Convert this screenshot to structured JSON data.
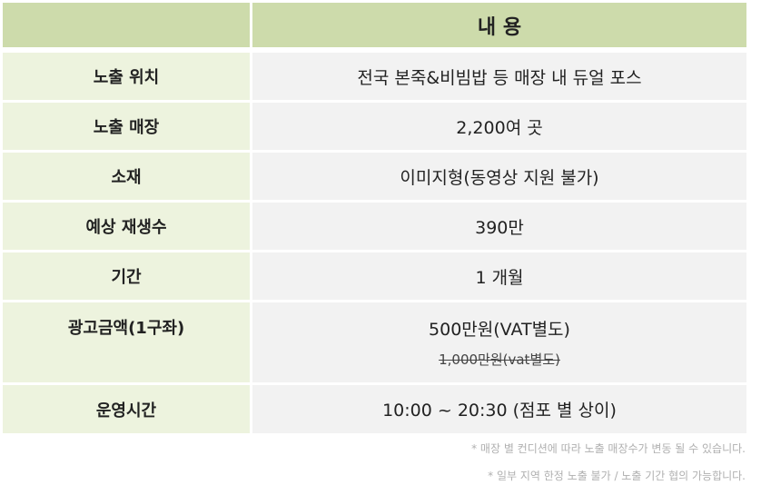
{
  "header": {
    "left": "",
    "right": "내 용"
  },
  "rows": [
    {
      "label": "노출 위치",
      "value": "전국 본죽&비빔밥 등 매장 내 듀얼 포스"
    },
    {
      "label": "노출 매장",
      "value": "2,200여 곳"
    },
    {
      "label": "소재",
      "value": "이미지형(동영상 지원 불가)"
    },
    {
      "label": "예상 재생수",
      "value": "390만"
    },
    {
      "label": "기간",
      "value": "1 개월"
    },
    {
      "label": "광고금액(1구좌)",
      "value": "500만원(VAT별도)",
      "old_value": "1,000만원(vat별도)"
    },
    {
      "label": "운영시간",
      "value": "10:00 ~ 20:30 (점포 별 상이)"
    }
  ],
  "notes": [
    "* 매장 별 컨디션에 따라 노출 매장수가 변동 될 수 있습니다.",
    "* 일부 지역 한정 노출 불가 / 노출 기간 협의 가능합니다."
  ]
}
